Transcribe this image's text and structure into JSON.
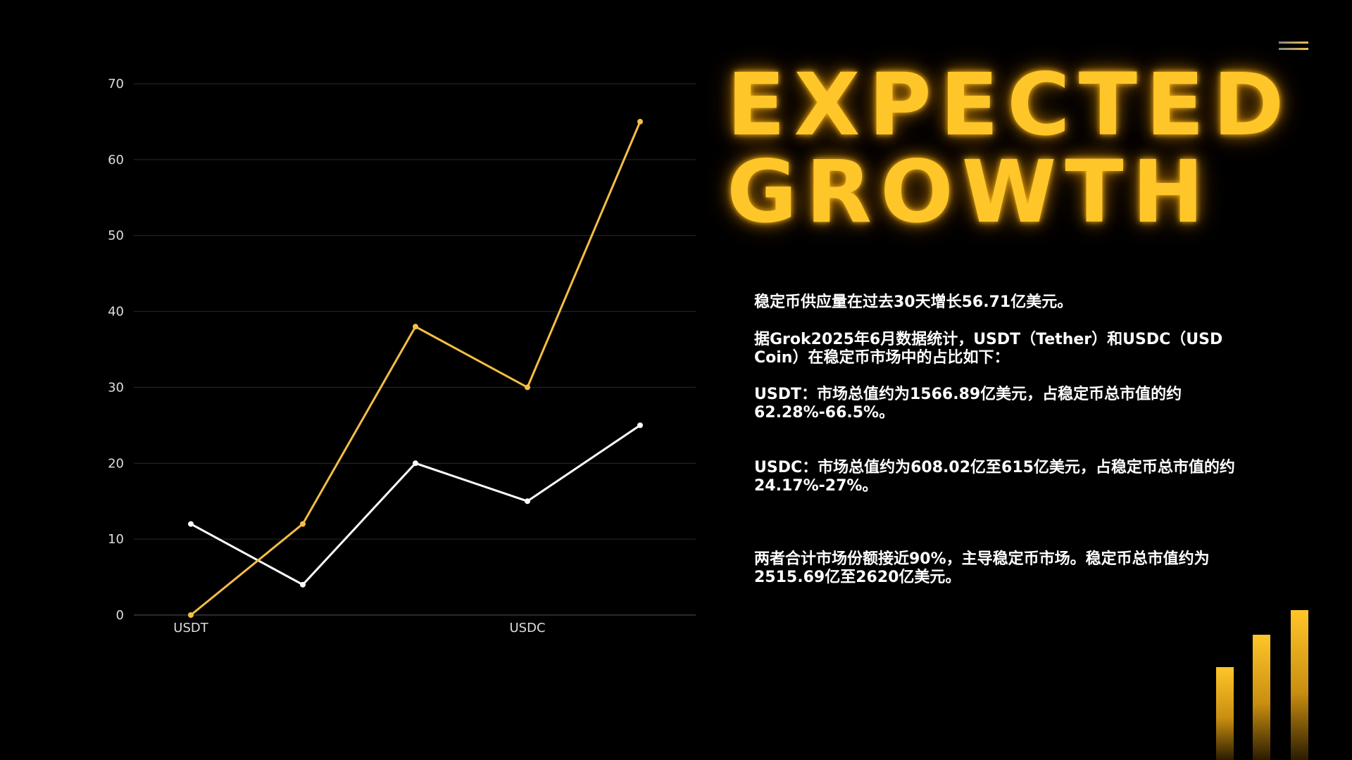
{
  "title": {
    "line1": "EXPECTED",
    "line2": "GROWTH"
  },
  "paragraphs": [
    "稳定币供应量在过去30天增长56.71亿美元。",
    "据Grok2025年6月数据统计，USDT（Tether）和USDC（USD Coin）在稳定币市场中的占比如下：",
    "USDT：市场总值约为1566.89亿美元，占稳定币总市值的约62.28%-66.5%。",
    "USDC：市场总值约为608.02亿至615亿美元，占稳定币总市值的约24.17%-27%。",
    "两者合计市场份额接近90%，主导稳定币市场。稳定币总市值约为2515.69亿至2620亿美元。"
  ],
  "icons": {
    "menu": "hamburger-menu-icon",
    "decor": "bar-chart-decoration"
  },
  "decor_bars": [
    0.63,
    0.8,
    0.93
  ],
  "chart_data": {
    "type": "line",
    "categories": [
      "USDT",
      "",
      "",
      "USDC",
      ""
    ],
    "series": [
      {
        "values": [
          0,
          12,
          38,
          30,
          65
        ],
        "color": "#F5BE45"
      },
      {
        "values": [
          12,
          4,
          20,
          15,
          25
        ],
        "color": "#FFFFFF"
      }
    ],
    "ylim": [
      0,
      70
    ],
    "yticks": [
      0,
      10,
      20,
      30,
      40,
      50,
      60,
      70
    ],
    "grid": true,
    "legend": "none"
  }
}
